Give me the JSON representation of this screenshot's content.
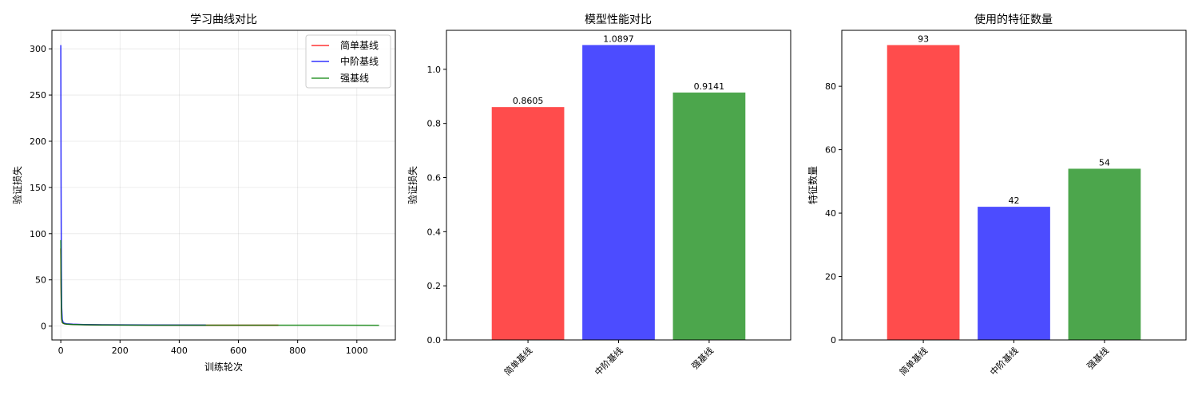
{
  "chart_data": [
    {
      "type": "line",
      "title": "学习曲线对比",
      "xlabel": "训练轮次",
      "ylabel": "验证损失",
      "xlim": [
        -30,
        1130
      ],
      "ylim": [
        -15,
        320
      ],
      "xticks": [
        0,
        200,
        400,
        600,
        800,
        1000
      ],
      "yticks": [
        0,
        50,
        100,
        150,
        200,
        250,
        300
      ],
      "grid": true,
      "legend_position": "top-right",
      "series": [
        {
          "name": "简单基线",
          "color": "#ff0000",
          "x": [
            0,
            1,
            2,
            3,
            5,
            8,
            12,
            20,
            40,
            80,
            150,
            300,
            500,
            735
          ],
          "y": [
            84,
            40,
            18,
            8,
            4,
            3,
            2.5,
            2.2,
            1.8,
            1.5,
            1.3,
            1.1,
            1.0,
            0.95
          ]
        },
        {
          "name": "中阶基线",
          "color": "#0000ff",
          "x": [
            0,
            1,
            2,
            3,
            5,
            8,
            12,
            20,
            40,
            80,
            150,
            300,
            490
          ],
          "y": [
            304,
            150,
            60,
            20,
            7,
            4,
            3,
            2.5,
            2,
            1.6,
            1.4,
            1.2,
            1.1
          ]
        },
        {
          "name": "强基线",
          "color": "#008000",
          "x": [
            0,
            1,
            2,
            3,
            5,
            8,
            12,
            20,
            40,
            80,
            150,
            300,
            600,
            900,
            1075
          ],
          "y": [
            93,
            45,
            20,
            8,
            4,
            3,
            2.5,
            2,
            1.7,
            1.4,
            1.2,
            1.0,
            0.95,
            0.92,
            0.91
          ]
        }
      ]
    },
    {
      "type": "bar",
      "title": "模型性能对比",
      "xlabel": "",
      "ylabel": "验证损失",
      "categories": [
        "简单基线",
        "中阶基线",
        "强基线"
      ],
      "values": [
        0.8605,
        1.0897,
        0.9141
      ],
      "value_labels": [
        "0.8605",
        "1.0897",
        "0.9141"
      ],
      "colors": [
        "#ff4c4c",
        "#4c4cff",
        "#4ca64c"
      ],
      "ylim": [
        0,
        1.144
      ],
      "yticks": [
        0.0,
        0.2,
        0.4,
        0.6,
        0.8,
        1.0
      ],
      "ytick_labels": [
        "0.0",
        "0.2",
        "0.4",
        "0.6",
        "0.8",
        "1.0"
      ]
    },
    {
      "type": "bar",
      "title": "使用的特征数量",
      "xlabel": "",
      "ylabel": "特征数量",
      "categories": [
        "简单基线",
        "中阶基线",
        "强基线"
      ],
      "values": [
        93,
        42,
        54
      ],
      "value_labels": [
        "93",
        "42",
        "54"
      ],
      "colors": [
        "#ff4c4c",
        "#4c4cff",
        "#4ca64c"
      ],
      "ylim": [
        0,
        97.65
      ],
      "yticks": [
        0,
        20,
        40,
        60,
        80
      ],
      "ytick_labels": [
        "0",
        "20",
        "40",
        "60",
        "80"
      ]
    }
  ]
}
